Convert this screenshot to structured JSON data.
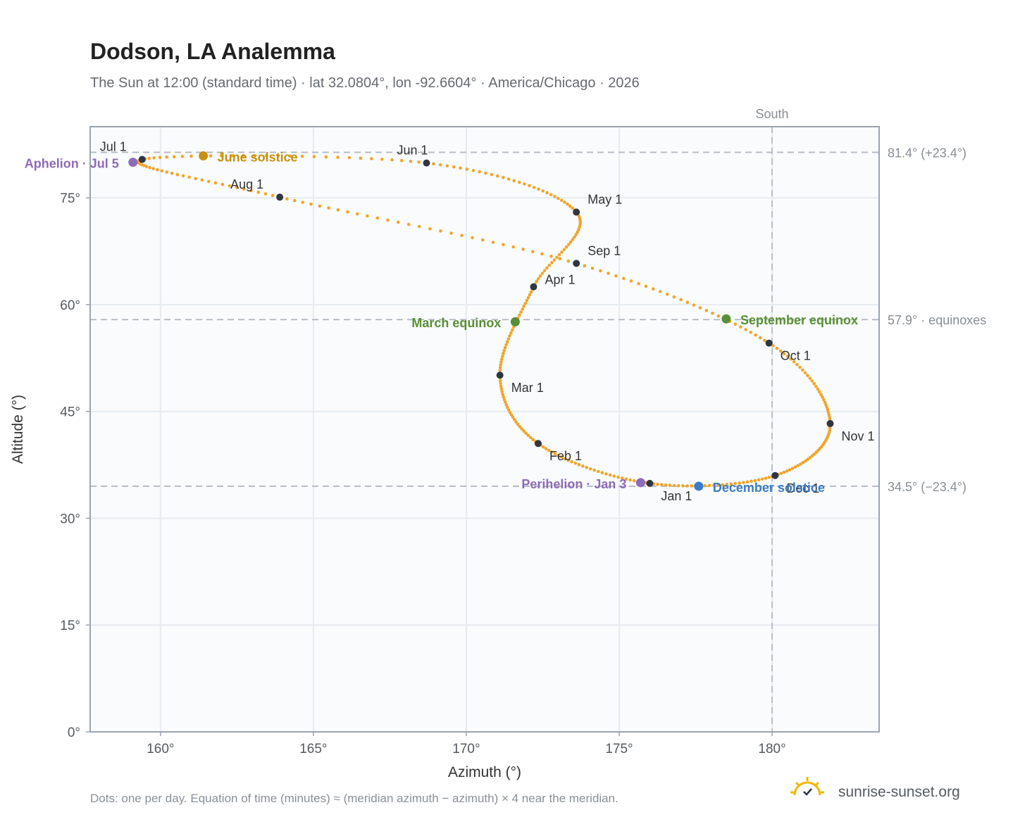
{
  "header": {
    "title": "Dodson, LA Analemma",
    "subtitle": "The Sun at 12:00 (standard time) · lat 32.0804°, lon -92.6604° · America/Chicago · 2026"
  },
  "footer": {
    "note": "Dots: one per day. Equation of time (minutes) ≈ (meridian azimuth − azimuth) × 4 near the meridian.",
    "brand": "sunrise-sunset.org"
  },
  "colors": {
    "curve": "#f2a52a",
    "month_marker": "#2f3640",
    "solstice_june": "#c8910d",
    "solstice_december": "#3b7dc4",
    "equinox": "#5a8f35",
    "apsis": "#8e6bb8",
    "grid": "#e6ebf0",
    "plot_bg": "#f9fbfd",
    "frame": "#9aa3b0",
    "ref_line": "#b4bac2"
  },
  "chart_data": {
    "type": "scatter",
    "title": "Dodson, LA Analemma",
    "xlabel": "Azimuth (°)",
    "ylabel": "Altitude (°)",
    "xlim": [
      157.7,
      183.5
    ],
    "ylim": [
      0,
      85
    ],
    "x_ticks": [
      160,
      165,
      170,
      175,
      180
    ],
    "x_tick_labels": [
      "160°",
      "165°",
      "170°",
      "175°",
      "180°"
    ],
    "y_ticks": [
      0,
      15,
      30,
      45,
      60,
      75
    ],
    "y_tick_labels": [
      "0°",
      "15°",
      "30°",
      "45°",
      "60°",
      "75°"
    ],
    "grid": true,
    "meridian": {
      "azimuth": 180,
      "label": "South"
    },
    "reference_lines": [
      {
        "altitude": 81.4,
        "label": "81.4° (+23.4°)"
      },
      {
        "altitude": 57.9,
        "label": "57.9° · equinoxes"
      },
      {
        "altitude": 34.5,
        "label": "34.5° (−23.4°)"
      }
    ],
    "month_markers": [
      {
        "label": "Jan 1",
        "azimuth": 176.0,
        "altitude": 34.9
      },
      {
        "label": "Feb 1",
        "azimuth": 172.35,
        "altitude": 40.5
      },
      {
        "label": "Mar 1",
        "azimuth": 171.1,
        "altitude": 50.1
      },
      {
        "label": "Apr 1",
        "azimuth": 172.2,
        "altitude": 62.5
      },
      {
        "label": "May 1",
        "azimuth": 173.6,
        "altitude": 73.0
      },
      {
        "label": "Jun 1",
        "azimuth": 168.7,
        "altitude": 79.9
      },
      {
        "label": "Jul 1",
        "azimuth": 159.4,
        "altitude": 80.4
      },
      {
        "label": "Aug 1",
        "azimuth": 163.9,
        "altitude": 75.1
      },
      {
        "label": "Sep 1",
        "azimuth": 173.6,
        "altitude": 65.8
      },
      {
        "label": "Oct 1",
        "azimuth": 179.9,
        "altitude": 54.6
      },
      {
        "label": "Nov 1",
        "azimuth": 181.9,
        "altitude": 43.3
      },
      {
        "label": "Dec 1",
        "azimuth": 180.1,
        "altitude": 36.0
      }
    ],
    "events": [
      {
        "label": "June solstice",
        "azimuth": 161.4,
        "altitude": 80.9,
        "color_key": "solstice_june"
      },
      {
        "label": "December solstice",
        "azimuth": 177.6,
        "altitude": 34.5,
        "color_key": "solstice_december"
      },
      {
        "label": "March equinox",
        "azimuth": 171.6,
        "altitude": 57.6,
        "color_key": "equinox"
      },
      {
        "label": "September equinox",
        "azimuth": 178.5,
        "altitude": 58.0,
        "color_key": "equinox"
      },
      {
        "label": "Perihelion · Jan 3",
        "azimuth": 175.7,
        "altitude": 35.0,
        "color_key": "apsis"
      },
      {
        "label": "Aphelion · Jul 5",
        "azimuth": 159.1,
        "altitude": 80.0,
        "color_key": "apsis"
      }
    ]
  }
}
